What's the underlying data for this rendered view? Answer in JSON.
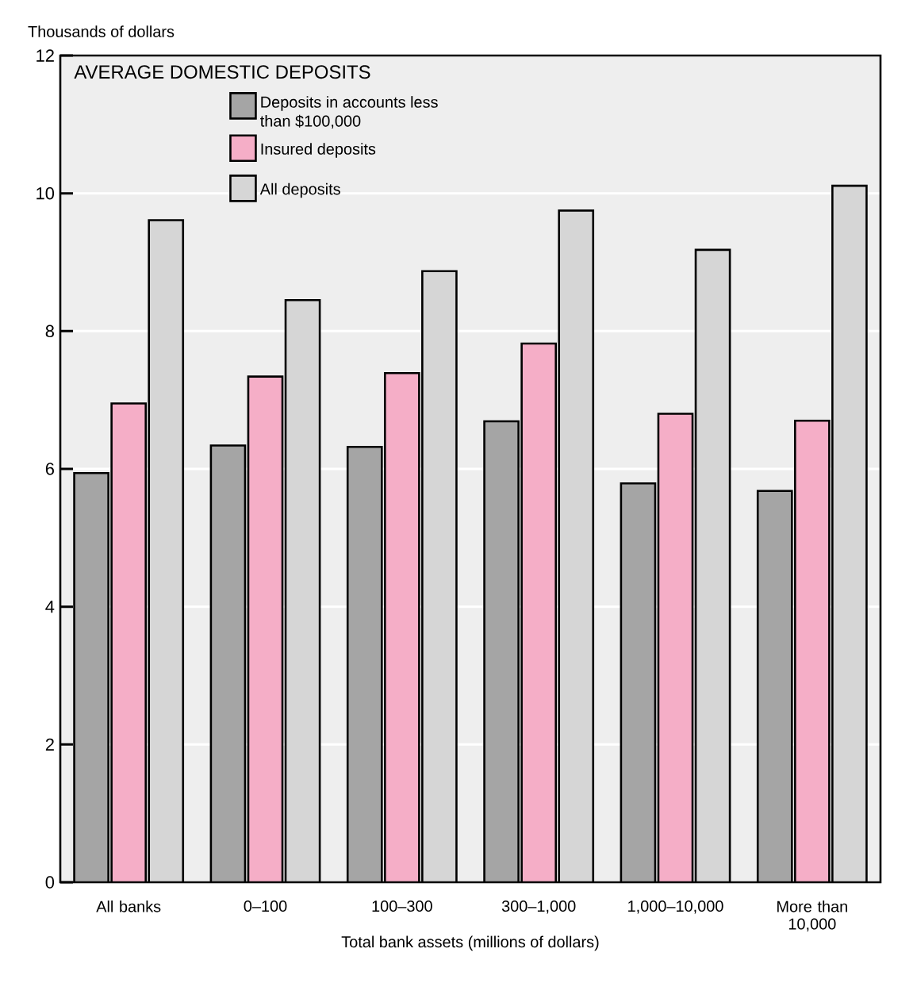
{
  "chart_data": {
    "type": "bar",
    "title": "AVERAGE DOMESTIC DEPOSITS",
    "xlabel": "Total bank assets (millions of dollars)",
    "ylabel": "Thousands of dollars",
    "categories": [
      "All banks",
      "0–100",
      "100–300",
      "300–1,000",
      "1,000–10,000",
      "More than 10,000"
    ],
    "series": [
      {
        "name": "Deposits in accounts less than $100,000",
        "color": "#a5a5a5",
        "values": [
          5.94,
          6.34,
          6.32,
          6.69,
          5.79,
          5.68
        ]
      },
      {
        "name": "Insured deposits",
        "color": "#f5aec7",
        "values": [
          6.95,
          7.34,
          7.39,
          7.82,
          6.8,
          6.7
        ]
      },
      {
        "name": "All deposits",
        "color": "#d6d6d6",
        "values": [
          9.61,
          8.45,
          8.87,
          9.75,
          9.18,
          10.11
        ]
      }
    ],
    "ylim": [
      0,
      12
    ],
    "yticks": [
      0,
      2,
      4,
      6,
      8,
      10,
      12
    ],
    "grid": "y",
    "legend": "top left"
  }
}
